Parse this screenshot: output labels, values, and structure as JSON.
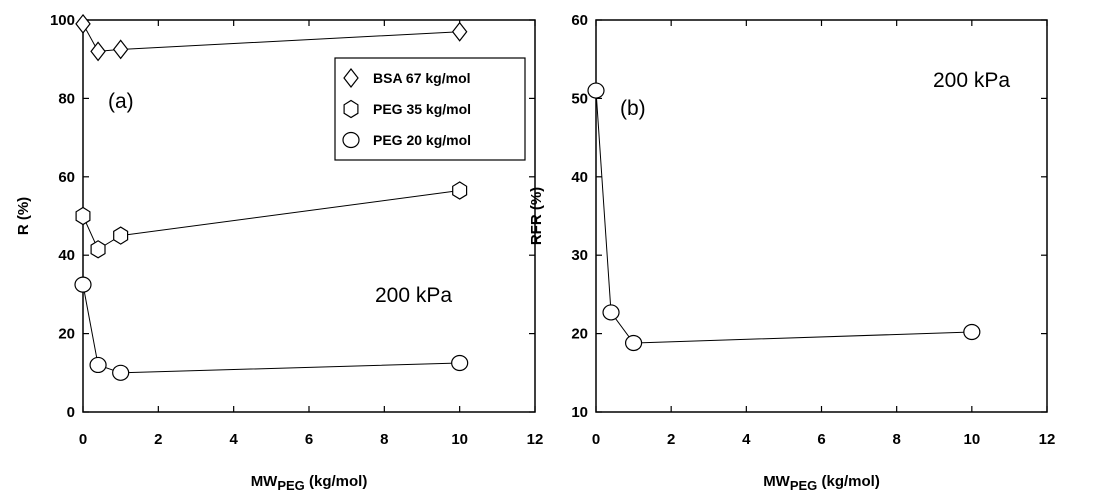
{
  "chart_data": [
    {
      "type": "line",
      "marker_lines": true,
      "ylabel": "R (%)",
      "xlabel": {
        "main": "MW",
        "sub": "PEG",
        "rest": " (kg/mol)"
      },
      "annotations": [
        "(a)",
        "200 kPa"
      ],
      "x": [
        0,
        0.4,
        1,
        10
      ],
      "xlim": [
        0,
        12
      ],
      "xticks": [
        0,
        2,
        4,
        6,
        8,
        10,
        12
      ],
      "ylim": [
        0,
        100
      ],
      "yticks": [
        0,
        20,
        40,
        60,
        80,
        100
      ],
      "legend": "upper right",
      "series": [
        {
          "name": "BSA 67 kg/mol",
          "marker": "diamond",
          "color": "#000000",
          "values": [
            99,
            92,
            92.5,
            97
          ]
        },
        {
          "name": "PEG 35 kg/mol",
          "marker": "hexagon",
          "color": "#000000",
          "values": [
            50,
            41.5,
            45,
            56.5
          ]
        },
        {
          "name": "PEG 20 kg/mol",
          "marker": "circle",
          "color": "#000000",
          "values": [
            32.5,
            12,
            10,
            12.5
          ]
        }
      ]
    },
    {
      "type": "line",
      "marker_lines": true,
      "ylabel": "RFR (%)",
      "xlabel": {
        "main": "MW",
        "sub": "PEG",
        "rest": " (kg/mol)"
      },
      "annotations": [
        "(b)",
        "200 kPa"
      ],
      "x": [
        0,
        0.4,
        1,
        10
      ],
      "xlim": [
        0,
        12
      ],
      "xticks": [
        0,
        2,
        4,
        6,
        8,
        10,
        12
      ],
      "ylim": [
        10,
        60
      ],
      "yticks": [
        10,
        20,
        30,
        40,
        50,
        60
      ],
      "series": [
        {
          "marker": "circle",
          "color": "#000000",
          "values": [
            51,
            22.7,
            18.8,
            20.2
          ]
        }
      ]
    }
  ]
}
